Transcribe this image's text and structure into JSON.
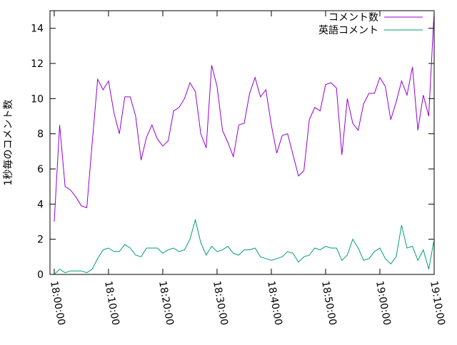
{
  "chart_data": {
    "type": "line",
    "y_label": "1秒毎のコメント数",
    "x": [
      "18:00:00",
      "18:01:00",
      "18:02:00",
      "18:03:00",
      "18:04:00",
      "18:05:00",
      "18:06:00",
      "18:07:00",
      "18:08:00",
      "18:09:00",
      "18:10:00",
      "18:11:00",
      "18:12:00",
      "18:13:00",
      "18:14:00",
      "18:15:00",
      "18:16:00",
      "18:17:00",
      "18:18:00",
      "18:19:00",
      "18:20:00",
      "18:21:00",
      "18:22:00",
      "18:23:00",
      "18:24:00",
      "18:25:00",
      "18:26:00",
      "18:27:00",
      "18:28:00",
      "18:29:00",
      "18:30:00",
      "18:31:00",
      "18:32:00",
      "18:33:00",
      "18:34:00",
      "18:35:00",
      "18:36:00",
      "18:37:00",
      "18:38:00",
      "18:39:00",
      "18:40:00",
      "18:41:00",
      "18:42:00",
      "18:43:00",
      "18:44:00",
      "18:45:00",
      "18:46:00",
      "18:47:00",
      "18:48:00",
      "18:49:00",
      "18:50:00",
      "18:51:00",
      "18:52:00",
      "18:53:00",
      "18:54:00",
      "18:55:00",
      "18:56:00",
      "18:57:00",
      "18:58:00",
      "18:59:00",
      "19:00:00",
      "19:01:00",
      "19:02:00",
      "19:03:00",
      "19:04:00",
      "19:05:00",
      "19:06:00",
      "19:07:00",
      "19:08:00",
      "19:09:00",
      "19:10:00"
    ],
    "series": [
      {
        "name": "コメント数",
        "color": "#9400d3",
        "values": [
          3,
          8.5,
          5.0,
          4.8,
          4.4,
          3.9,
          3.8,
          7.5,
          11.1,
          10.5,
          11.0,
          9.2,
          8.0,
          10.1,
          10.1,
          9.0,
          6.5,
          7.8,
          8.5,
          7.7,
          7.3,
          7.6,
          9.3,
          9.5,
          10.0,
          10.9,
          10.4,
          8.0,
          7.2,
          11.9,
          10.7,
          8.2,
          7.5,
          6.7,
          8.5,
          8.6,
          10.3,
          11.2,
          10.1,
          10.5,
          8.5,
          6.9,
          7.9,
          8.0,
          6.8,
          5.6,
          5.9,
          8.8,
          9.5,
          9.3,
          10.8,
          10.9,
          10.6,
          6.8,
          10.0,
          8.6,
          8.2,
          9.7,
          10.3,
          10.3,
          11.2,
          10.7,
          8.8,
          9.8,
          11.0,
          10.2,
          11.8,
          8.2,
          10.2,
          9.0,
          15
        ]
      },
      {
        "name": "英語コメント",
        "color": "#009e73",
        "values": [
          0,
          0.3,
          0.1,
          0.2,
          0.2,
          0.2,
          0.1,
          0.3,
          0.9,
          1.4,
          1.5,
          1.3,
          1.3,
          1.7,
          1.5,
          1.1,
          1.0,
          1.5,
          1.5,
          1.5,
          1.2,
          1.4,
          1.5,
          1.3,
          1.4,
          2.0,
          3.1,
          1.8,
          1.1,
          1.6,
          1.3,
          1.4,
          1.6,
          1.2,
          1.1,
          1.4,
          1.4,
          1.5,
          1.0,
          0.9,
          0.8,
          0.9,
          1.0,
          1.3,
          1.2,
          0.7,
          1.0,
          1.1,
          1.5,
          1.4,
          1.6,
          1.5,
          1.5,
          0.8,
          1.1,
          2.0,
          1.5,
          0.8,
          0.9,
          1.3,
          1.5,
          0.9,
          0.6,
          1.0,
          2.8,
          1.5,
          1.6,
          0.8,
          1.4,
          0.3,
          2.0
        ]
      }
    ],
    "xlim": [
      "17:59:13",
      "19:10:00"
    ],
    "xticks": [
      "18:00:00",
      "18:10:00",
      "18:20:00",
      "18:30:00",
      "18:40:00",
      "18:50:00",
      "19:00:00",
      "19:10:00"
    ],
    "ylim": [
      0,
      15
    ],
    "yticks": [
      0,
      2,
      4,
      6,
      8,
      10,
      12,
      14
    ],
    "legend": "top-right"
  }
}
